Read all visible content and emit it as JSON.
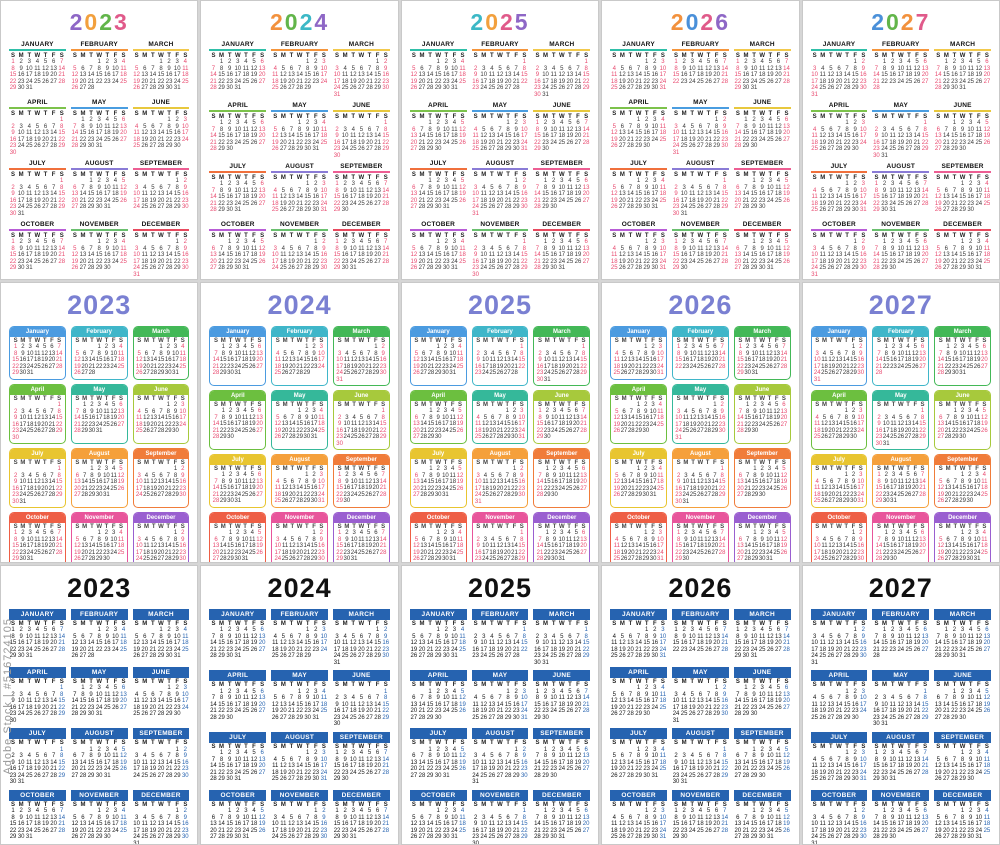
{
  "watermark": {
    "side_text": "Adobe Stock | #516724105"
  },
  "weekday_letters": [
    "S",
    "M",
    "T",
    "W",
    "T",
    "F",
    "S"
  ],
  "month_names": [
    "JANUARY",
    "FEBRUARY",
    "MARCH",
    "APRIL",
    "MAY",
    "JUNE",
    "JULY",
    "AUGUST",
    "SEPTEMBER",
    "OCTOBER",
    "NOVEMBER",
    "DECEMBER"
  ],
  "month_names_title": [
    "January",
    "February",
    "March",
    "April",
    "May",
    "June",
    "July",
    "August",
    "September",
    "October",
    "November",
    "December"
  ],
  "years": [
    {
      "year": "2023",
      "first_weekday": [
        0,
        3,
        3,
        6,
        1,
        4,
        6,
        2,
        5,
        0,
        3,
        5
      ],
      "days_in_month": [
        31,
        28,
        31,
        30,
        31,
        30,
        31,
        31,
        30,
        31,
        30,
        31
      ]
    },
    {
      "year": "2024",
      "first_weekday": [
        1,
        4,
        5,
        1,
        3,
        6,
        1,
        4,
        0,
        2,
        5,
        0
      ],
      "days_in_month": [
        31,
        29,
        31,
        30,
        31,
        30,
        31,
        31,
        30,
        31,
        30,
        31
      ]
    },
    {
      "year": "2025",
      "first_weekday": [
        3,
        6,
        6,
        2,
        4,
        0,
        2,
        5,
        1,
        3,
        6,
        1
      ],
      "days_in_month": [
        31,
        28,
        31,
        30,
        31,
        30,
        31,
        31,
        30,
        31,
        30,
        31
      ]
    },
    {
      "year": "2026",
      "first_weekday": [
        4,
        0,
        0,
        3,
        5,
        1,
        3,
        6,
        2,
        4,
        0,
        2
      ],
      "days_in_month": [
        31,
        28,
        31,
        30,
        31,
        30,
        31,
        31,
        30,
        31,
        30,
        31
      ]
    },
    {
      "year": "2027",
      "first_weekday": [
        5,
        1,
        1,
        4,
        6,
        2,
        4,
        0,
        3,
        5,
        1,
        3
      ],
      "days_in_month": [
        31,
        28,
        31,
        30,
        31,
        30,
        31,
        31,
        30,
        31,
        30,
        31
      ]
    }
  ],
  "rows": [
    {
      "style": "multicolor-line",
      "digit_colors": {
        "2023": [
          "#8e67c6",
          "#f2a03d",
          "#62b54a",
          "#e05a8a"
        ],
        "2024": [
          "#f2913d",
          "#62b54a",
          "#3cb8c6",
          "#8e67c6"
        ],
        "2025": [
          "#3cb8c6",
          "#f2a03d",
          "#e05a8a",
          "#8e67c6"
        ],
        "2026": [
          "#f2913d",
          "#4a90d9",
          "#e05a8a",
          "#8e67c6"
        ],
        "2027": [
          "#4a90d9",
          "#62b54a",
          "#f2913d",
          "#e05a8a"
        ]
      },
      "month_colors": [
        "#2fbfa8",
        "#f5953b",
        "#f2c94c",
        "#7cc24b",
        "#4a9de0",
        "#e8c83d",
        "#f0703c",
        "#8a7bd6",
        "#ed5e93",
        "#b85cd6",
        "#6abf6e",
        "#e84a5f"
      ],
      "sun_color": "#e8486e",
      "sat_color": "#e8486e",
      "date_color": "#3a3a3a",
      "weekday_color": "#1c1c1c"
    },
    {
      "style": "rounded-color-cards",
      "year_color": "#7a80d2",
      "month_colors": [
        "#4b9be0",
        "#3fb6c9",
        "#43b857",
        "#6cbf3f",
        "#35b89a",
        "#a7c93c",
        "#e8c530",
        "#f5a03b",
        "#f07c3a",
        "#ee5f45",
        "#e8559b",
        "#9a5fd0"
      ],
      "sun_color": "#e8486e",
      "sat_color": "#e8486e",
      "date_color": "#333333",
      "weekday_color": "#444444"
    },
    {
      "style": "classic-blue",
      "year_color": "#111111",
      "header_color": "#2663b0",
      "sun_color": "#111111",
      "sat_color": "#2663b0",
      "date_color": "#1c1c1c",
      "weekday_color": "#1c1c1c"
    }
  ]
}
